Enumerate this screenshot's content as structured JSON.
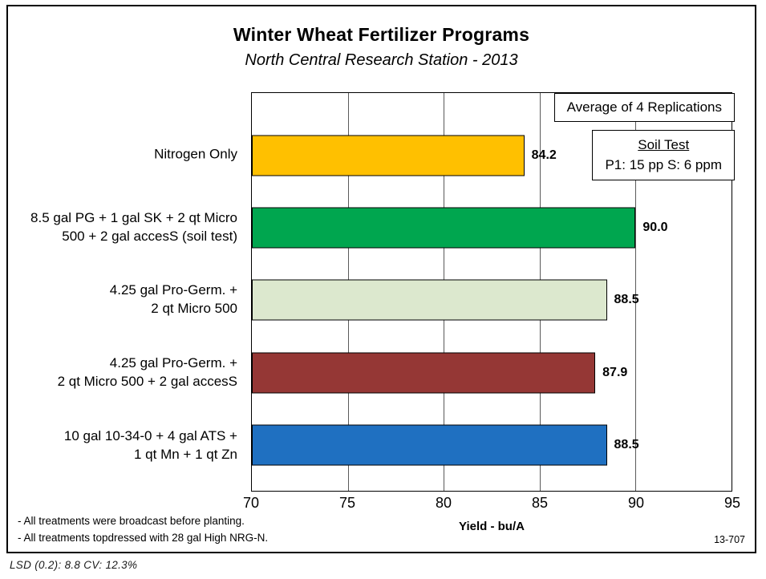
{
  "header": {
    "title": "Winter Wheat Fertilizer Programs",
    "subtitle": "North Central Research Station - 2013"
  },
  "annotations": {
    "replications": "Average of 4 Replications",
    "soil_test_title": "Soil Test",
    "soil_test_values": "P1: 15 pp   S: 6 ppm"
  },
  "chart_data": {
    "type": "bar",
    "orientation": "horizontal",
    "title": "Winter Wheat Fertilizer Programs",
    "subtitle": "North Central Research Station - 2013",
    "categories": [
      "Nitrogen Only",
      "8.5 gal PG + 1 gal SK + 2 qt Micro\n500 + 2 gal accesS (soil test)",
      "4.25 gal Pro-Germ. +\n2 qt Micro 500",
      "4.25 gal Pro-Germ. +\n2 qt Micro 500 + 2 gal accesS",
      "10 gal 10-34-0 + 4 gal ATS  +\n1 qt Mn + 1 qt Zn"
    ],
    "values": [
      84.2,
      90.0,
      88.5,
      87.9,
      88.5
    ],
    "value_labels": [
      "84.2",
      "90.0",
      "88.5",
      "87.9",
      "88.5"
    ],
    "colors": [
      "#FFC000",
      "#00A64F",
      "#DCE8CE",
      "#953735",
      "#1F70C1"
    ],
    "xlabel": "Yield - bu/A",
    "ylabel": "",
    "xlim": [
      70,
      95
    ],
    "xticks": [
      70,
      75,
      80,
      85,
      90,
      95
    ],
    "grid": true,
    "legend": "none"
  },
  "footnotes": {
    "line1": "- All treatments were broadcast before planting.",
    "line2": "- All treatments topdressed with 28 gal High NRG-N."
  },
  "figure_number": "13-707",
  "stats_line": "LSD (0.2): 8.8    CV: 12.3%"
}
